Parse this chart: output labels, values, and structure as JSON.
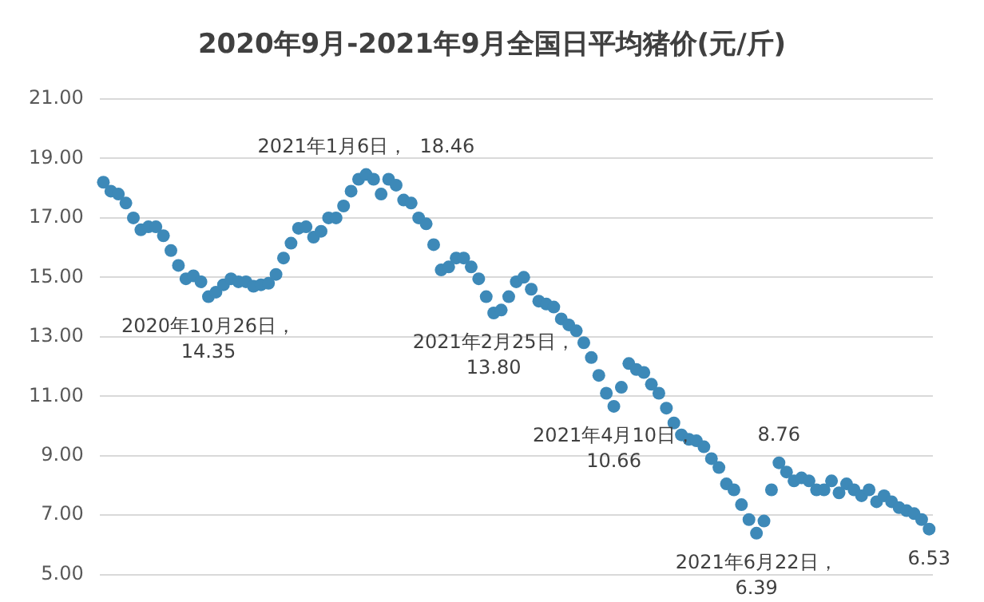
{
  "chart_data": {
    "type": "scatter",
    "title": "2020年9月-2021年9月全国日平均猪价(元/斤)",
    "marker": "circle",
    "grid": "y",
    "legend": false,
    "ylim": [
      5,
      21
    ],
    "yticks": [
      {
        "value": 5,
        "label": "5.00"
      },
      {
        "value": 7,
        "label": "7.00"
      },
      {
        "value": 9,
        "label": "9.00"
      },
      {
        "value": 11,
        "label": "11.00"
      },
      {
        "value": 13,
        "label": "13.00"
      },
      {
        "value": 15,
        "label": "15.00"
      },
      {
        "value": 17,
        "label": "17.00"
      },
      {
        "value": 19,
        "label": "19.00"
      },
      {
        "value": 21,
        "label": "21.00"
      }
    ],
    "categories": [
      null,
      null,
      null,
      null,
      null,
      null,
      null,
      null,
      null,
      null,
      null,
      null,
      null,
      null,
      null,
      null,
      null,
      null,
      null,
      null,
      null,
      null,
      null,
      null,
      null,
      null,
      null,
      null,
      null,
      null,
      null,
      null,
      null,
      null,
      null,
      null,
      null,
      null,
      null,
      null,
      null,
      null,
      null,
      null,
      null,
      null,
      null,
      null,
      null,
      null,
      null,
      null,
      null,
      null,
      null,
      null,
      null,
      null,
      null,
      null,
      null,
      null,
      null,
      null,
      null,
      null,
      null,
      null,
      null,
      null,
      null,
      null,
      null,
      null,
      null,
      null,
      null,
      null,
      null,
      null,
      null,
      null,
      null,
      null,
      null,
      null,
      null,
      null,
      null,
      null,
      null,
      null,
      null,
      null,
      null,
      null,
      null,
      null,
      null,
      null,
      null,
      null,
      null,
      null,
      null,
      null,
      null,
      null,
      null,
      null,
      null
    ],
    "series": [
      {
        "color": "#3d89b8",
        "values": [
          18.2,
          17.9,
          17.8,
          17.5,
          17.0,
          16.6,
          16.7,
          16.7,
          16.4,
          15.9,
          15.4,
          14.95,
          15.05,
          14.85,
          14.35,
          14.5,
          14.75,
          14.95,
          14.85,
          14.85,
          14.7,
          14.75,
          14.8,
          15.1,
          15.65,
          16.15,
          16.65,
          16.7,
          16.35,
          16.55,
          17.0,
          17.0,
          17.4,
          17.9,
          18.3,
          18.46,
          18.3,
          17.8,
          18.3,
          18.1,
          17.6,
          17.5,
          17.0,
          16.8,
          16.1,
          15.25,
          15.35,
          15.65,
          15.65,
          15.35,
          14.95,
          14.35,
          13.8,
          13.9,
          14.35,
          14.85,
          15.0,
          14.6,
          14.2,
          14.1,
          14.0,
          13.6,
          13.4,
          13.2,
          12.8,
          12.3,
          11.7,
          11.1,
          10.66,
          11.3,
          12.1,
          11.9,
          11.8,
          11.4,
          11.1,
          10.6,
          10.1,
          9.7,
          9.55,
          9.5,
          9.3,
          8.9,
          8.6,
          8.05,
          7.85,
          7.35,
          6.85,
          6.39,
          6.8,
          7.85,
          8.76,
          8.45,
          8.15,
          8.25,
          8.15,
          7.85,
          7.85,
          8.15,
          7.75,
          8.05,
          7.85,
          7.65,
          7.85,
          7.45,
          7.65,
          7.45,
          7.25,
          7.15,
          7.05,
          6.85,
          6.53
        ]
      }
    ],
    "annotations": [
      {
        "text": "2020年10月26日，\n14.35",
        "y": 14.35
      },
      {
        "text": "2021年1月6日，  18.46",
        "y": 18.46
      },
      {
        "text": "2021年2月25日，\n13.80",
        "y": 13.8
      },
      {
        "text": "2021年4月10日，\n10.66",
        "y": 10.66
      },
      {
        "text": "2021年6月22日，\n6.39",
        "y": 6.39
      },
      {
        "text": "8.76",
        "y": 8.76
      },
      {
        "text": "6.53",
        "y": 6.53
      }
    ]
  }
}
